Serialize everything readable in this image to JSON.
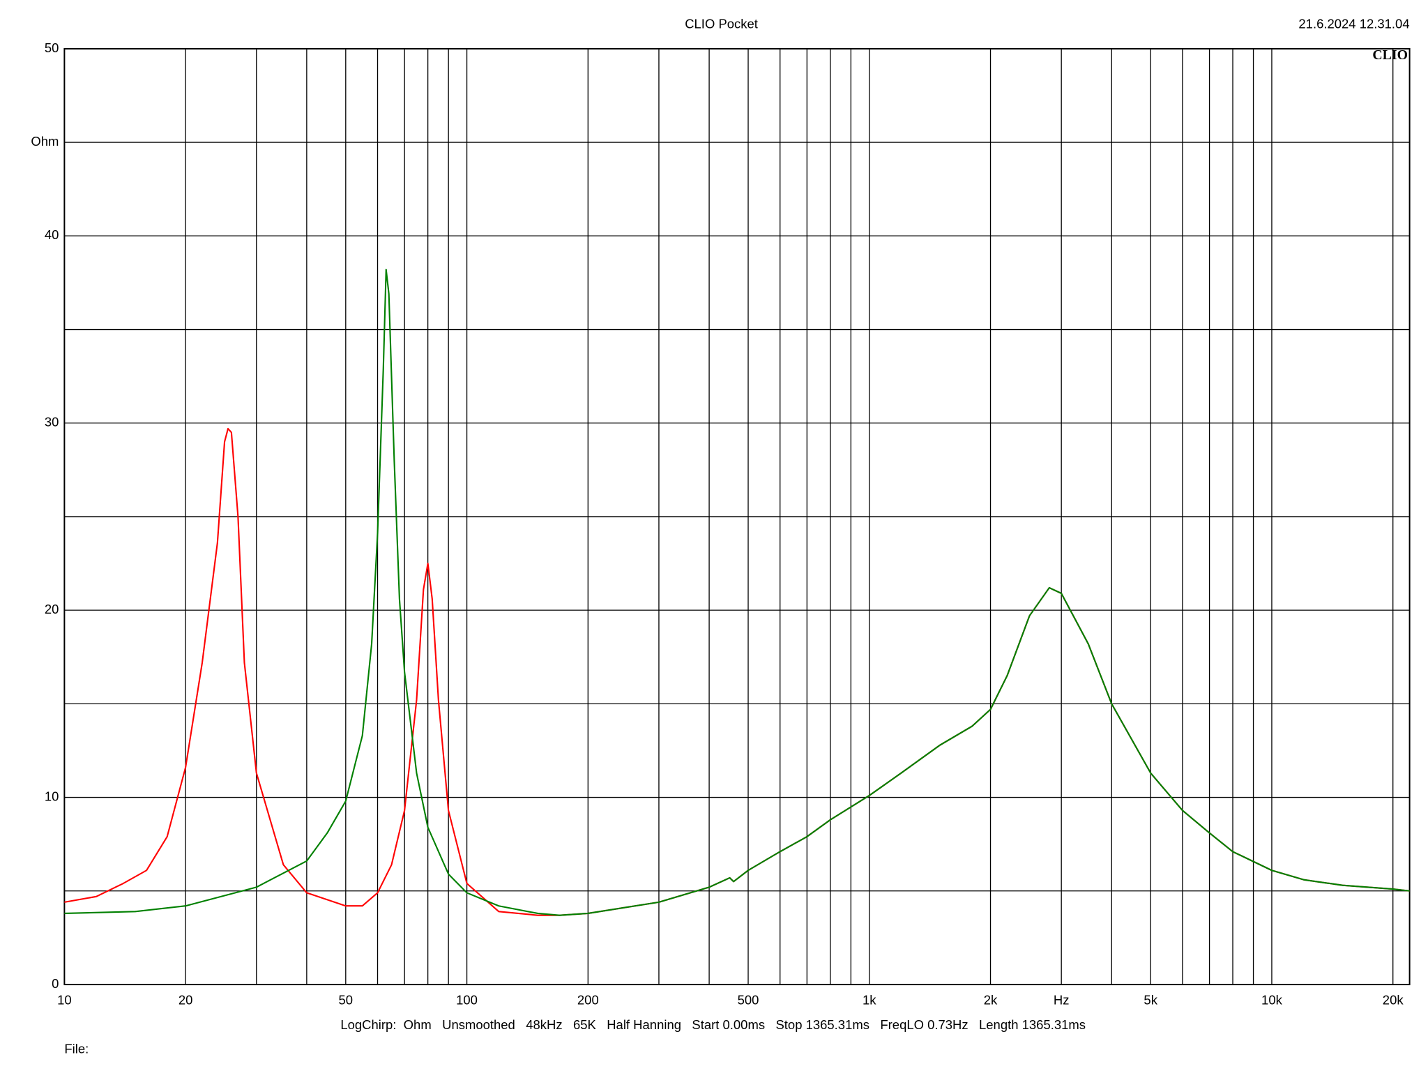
{
  "chart_data": {
    "type": "line",
    "title": "CLIO Pocket",
    "timestamp": "21.6.2024 12.31.04",
    "logo": "CLIO",
    "footer": "LogChirp:  Ohm   Unsmoothed   48kHz   65K   Half Hanning   Start 0.00ms   Stop 1365.31ms   FreqLO 0.73Hz   Length 1365.31ms",
    "file_label": "File:",
    "x_log": true,
    "grid": true,
    "xlim": [
      10,
      22000
    ],
    "xticks": [
      10,
      20,
      50,
      100,
      200,
      500,
      {
        "value": 1000,
        "label": "1k"
      },
      {
        "value": 2000,
        "label": "2k"
      },
      {
        "value": 3000,
        "label": "Hz"
      },
      {
        "value": 5000,
        "label": "5k"
      },
      {
        "value": 10000,
        "label": "10k"
      },
      {
        "value": 20000,
        "label": "20k"
      }
    ],
    "minor_xticks": [
      30,
      40,
      60,
      70,
      80,
      90,
      300,
      400,
      600,
      700,
      800,
      900,
      4000,
      6000,
      7000,
      8000,
      9000
    ],
    "ylim": [
      0,
      50
    ],
    "yticks": [
      0,
      10,
      20,
      30,
      40,
      {
        "value": 45,
        "label": "Ohm"
      },
      50
    ],
    "minor_yticks": [
      5,
      15,
      25,
      35
    ],
    "series": [
      {
        "name": "red",
        "color": "#ff0000",
        "x": [
          10,
          12,
          14,
          16,
          18,
          20,
          22,
          24,
          25,
          25.5,
          26,
          27,
          28,
          30,
          35,
          40,
          50,
          55,
          60,
          65,
          70,
          75,
          78,
          80,
          82,
          85,
          90,
          100,
          120,
          150,
          170,
          200,
          300,
          400,
          450,
          460,
          500,
          600,
          700,
          800,
          1000,
          1200,
          1500,
          1800,
          2000,
          2200,
          2500,
          2800,
          3000,
          3500,
          4000,
          5000,
          6000,
          7000,
          8000,
          10000,
          12000,
          15000,
          20000,
          22000
        ],
        "values": [
          4.4,
          4.7,
          5.4,
          6.1,
          7.9,
          11.6,
          17.2,
          23.6,
          29,
          29.7,
          29.5,
          25,
          17.2,
          11.3,
          6.4,
          4.9,
          4.2,
          4.2,
          4.9,
          6.4,
          9.3,
          15.2,
          21.1,
          22.5,
          20.6,
          15.2,
          9.3,
          5.4,
          3.9,
          3.7,
          3.7,
          3.8,
          4.4,
          5.2,
          5.7,
          5.5,
          6.1,
          7.1,
          7.9,
          8.8,
          10.1,
          11.3,
          12.8,
          13.8,
          14.7,
          16.5,
          19.7,
          21.2,
          20.9,
          18.2,
          15,
          11.3,
          9.3,
          8.1,
          7.1,
          6.1,
          5.6,
          5.3,
          5.1,
          5
        ]
      },
      {
        "name": "green",
        "color": "#008000",
        "x": [
          10,
          15,
          20,
          30,
          40,
          45,
          50,
          55,
          58,
          60,
          62,
          63,
          64,
          66,
          68,
          70,
          75,
          80,
          90,
          100,
          120,
          150,
          170,
          200,
          300,
          400,
          450,
          460,
          500,
          600,
          700,
          800,
          1000,
          1200,
          1500,
          1800,
          2000,
          2200,
          2500,
          2800,
          3000,
          3500,
          4000,
          5000,
          6000,
          7000,
          8000,
          10000,
          12000,
          15000,
          20000,
          22000
        ],
        "values": [
          3.8,
          3.9,
          4.2,
          5.2,
          6.6,
          8.1,
          9.8,
          13.3,
          18.2,
          24.1,
          32.9,
          38.2,
          36.9,
          28,
          20.6,
          16.7,
          11.3,
          8.4,
          5.9,
          4.9,
          4.2,
          3.8,
          3.7,
          3.8,
          4.4,
          5.2,
          5.7,
          5.5,
          6.1,
          7.1,
          7.9,
          8.8,
          10.1,
          11.3,
          12.8,
          13.8,
          14.7,
          16.5,
          19.7,
          21.2,
          20.9,
          18.2,
          15,
          11.3,
          9.3,
          8.1,
          7.1,
          6.1,
          5.6,
          5.3,
          5.1,
          5
        ]
      }
    ]
  }
}
